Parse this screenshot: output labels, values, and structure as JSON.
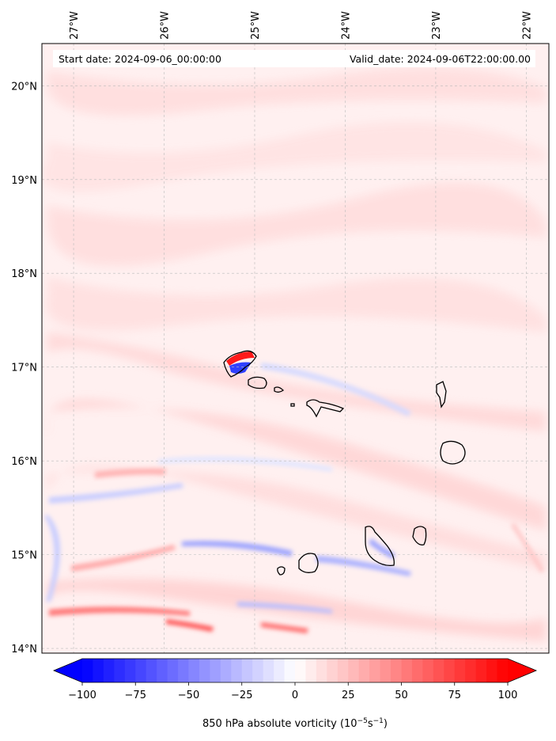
{
  "header": {
    "start_date": "Start date: 2024-09-06_00:00:00",
    "valid_date": "Valid_date: 2024-09-06T22:00:00.00"
  },
  "map": {
    "lon_range": [
      -27.35,
      -21.75
    ],
    "lat_range": [
      13.95,
      20.45
    ],
    "lon_ticks": [
      {
        "value": -27,
        "label": "27°W"
      },
      {
        "value": -26,
        "label": "26°W"
      },
      {
        "value": -25,
        "label": "25°W"
      },
      {
        "value": -24,
        "label": "24°W"
      },
      {
        "value": -23,
        "label": "23°W"
      },
      {
        "value": -22,
        "label": "22°W"
      }
    ],
    "lat_ticks": [
      {
        "value": 20,
        "label": "20°N"
      },
      {
        "value": 19,
        "label": "19°N"
      },
      {
        "value": 18,
        "label": "18°N"
      },
      {
        "value": 17,
        "label": "17°N"
      },
      {
        "value": 16,
        "label": "16°N"
      },
      {
        "value": 15,
        "label": "15°N"
      },
      {
        "value": 14,
        "label": "14°N"
      }
    ],
    "gridlines": true,
    "field_colors": {
      "background": "#fff0f0",
      "light_red": "#ffdede",
      "mid_red": "#ff9a9a",
      "strong_red": "#ff1a1a",
      "light_blue": "#e2e6ff",
      "mid_blue": "#9aa2ff",
      "strong_blue": "#3040ff",
      "coast": "#000000"
    }
  },
  "colorbar": {
    "vmin": -100,
    "vmax": 100,
    "min_color": "#0000ff",
    "max_color": "#ff0000",
    "ticks": [
      {
        "value": -100,
        "label": "−100"
      },
      {
        "value": -75,
        "label": "−75"
      },
      {
        "value": -50,
        "label": "−50"
      },
      {
        "value": -25,
        "label": "−25"
      },
      {
        "value": 0,
        "label": "0"
      },
      {
        "value": 25,
        "label": "25"
      },
      {
        "value": 50,
        "label": "50"
      },
      {
        "value": 75,
        "label": "75"
      },
      {
        "value": 100,
        "label": "100"
      }
    ],
    "label_main": "850 hPa absolute vorticity (10",
    "label_exp1": "−5",
    "label_mid": "s",
    "label_exp2": "−1",
    "label_end": ")"
  }
}
